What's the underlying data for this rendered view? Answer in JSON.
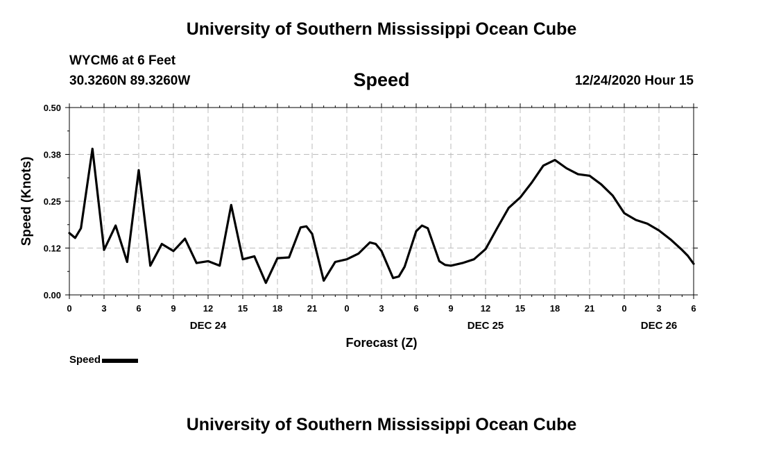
{
  "header": {
    "title": "University of Southern Mississippi Ocean Cube",
    "station": "WYCM6 at 6 Feet",
    "coordinates": "30.3260N 89.3260W",
    "datetime": "12/24/2020 Hour 15"
  },
  "footer": {
    "title": "University of Southern Mississippi Ocean Cube"
  },
  "legend": {
    "label": "Speed"
  },
  "colors": {
    "line": "#000000",
    "grid": "#bbbbbb",
    "axis": "#000000"
  },
  "chart_data": {
    "type": "line",
    "title": "Speed",
    "xlabel": "Forecast (Z)",
    "ylabel": "Speed (Knots)",
    "x_unit": "hours since 2020-12-24 00Z",
    "xlim": [
      0,
      54
    ],
    "ylim": [
      0,
      0.5
    ],
    "yticks": [
      0,
      0.125,
      0.25,
      0.375,
      0.5
    ],
    "ytick_labels": [
      "0.00",
      "0.12",
      "0.25",
      "0.38",
      "0.50"
    ],
    "xticks": [
      0,
      3,
      6,
      9,
      12,
      15,
      18,
      21,
      24,
      27,
      30,
      33,
      36,
      39,
      42,
      45,
      48,
      51,
      54
    ],
    "xtick_labels": [
      "0",
      "3",
      "6",
      "9",
      "12",
      "15",
      "18",
      "21",
      "0",
      "3",
      "6",
      "9",
      "12",
      "15",
      "18",
      "21",
      "0",
      "3",
      "6"
    ],
    "day_labels": [
      {
        "x": 12,
        "label": "DEC 24"
      },
      {
        "x": 36,
        "label": "DEC 25"
      },
      {
        "x": 51,
        "label": "DEC 26"
      }
    ],
    "grid": true,
    "series": [
      {
        "name": "Speed",
        "x": [
          0,
          0.5,
          1,
          2,
          3,
          4,
          5,
          6,
          7,
          8,
          9,
          10,
          11,
          12,
          13,
          14,
          15,
          16,
          17,
          18,
          19,
          20,
          20.5,
          21,
          22,
          23,
          24,
          25,
          26,
          26.5,
          27,
          28,
          28.5,
          29,
          30,
          30.5,
          31,
          32,
          32.5,
          33,
          34,
          35,
          36,
          37,
          38,
          39,
          40,
          41,
          42,
          43,
          44,
          45,
          46,
          47,
          48,
          49,
          50,
          51,
          52,
          53,
          53.5,
          54
        ],
        "values": [
          0.165,
          0.152,
          0.178,
          0.39,
          0.12,
          0.185,
          0.088,
          0.333,
          0.078,
          0.136,
          0.117,
          0.15,
          0.085,
          0.09,
          0.078,
          0.24,
          0.095,
          0.103,
          0.032,
          0.098,
          0.1,
          0.18,
          0.183,
          0.163,
          0.038,
          0.088,
          0.095,
          0.11,
          0.14,
          0.136,
          0.117,
          0.045,
          0.049,
          0.075,
          0.17,
          0.185,
          0.178,
          0.09,
          0.08,
          0.078,
          0.085,
          0.095,
          0.122,
          0.178,
          0.232,
          0.26,
          0.3,
          0.345,
          0.36,
          0.338,
          0.322,
          0.318,
          0.295,
          0.265,
          0.218,
          0.2,
          0.19,
          0.172,
          0.148,
          0.12,
          0.104,
          0.083
        ]
      }
    ]
  }
}
